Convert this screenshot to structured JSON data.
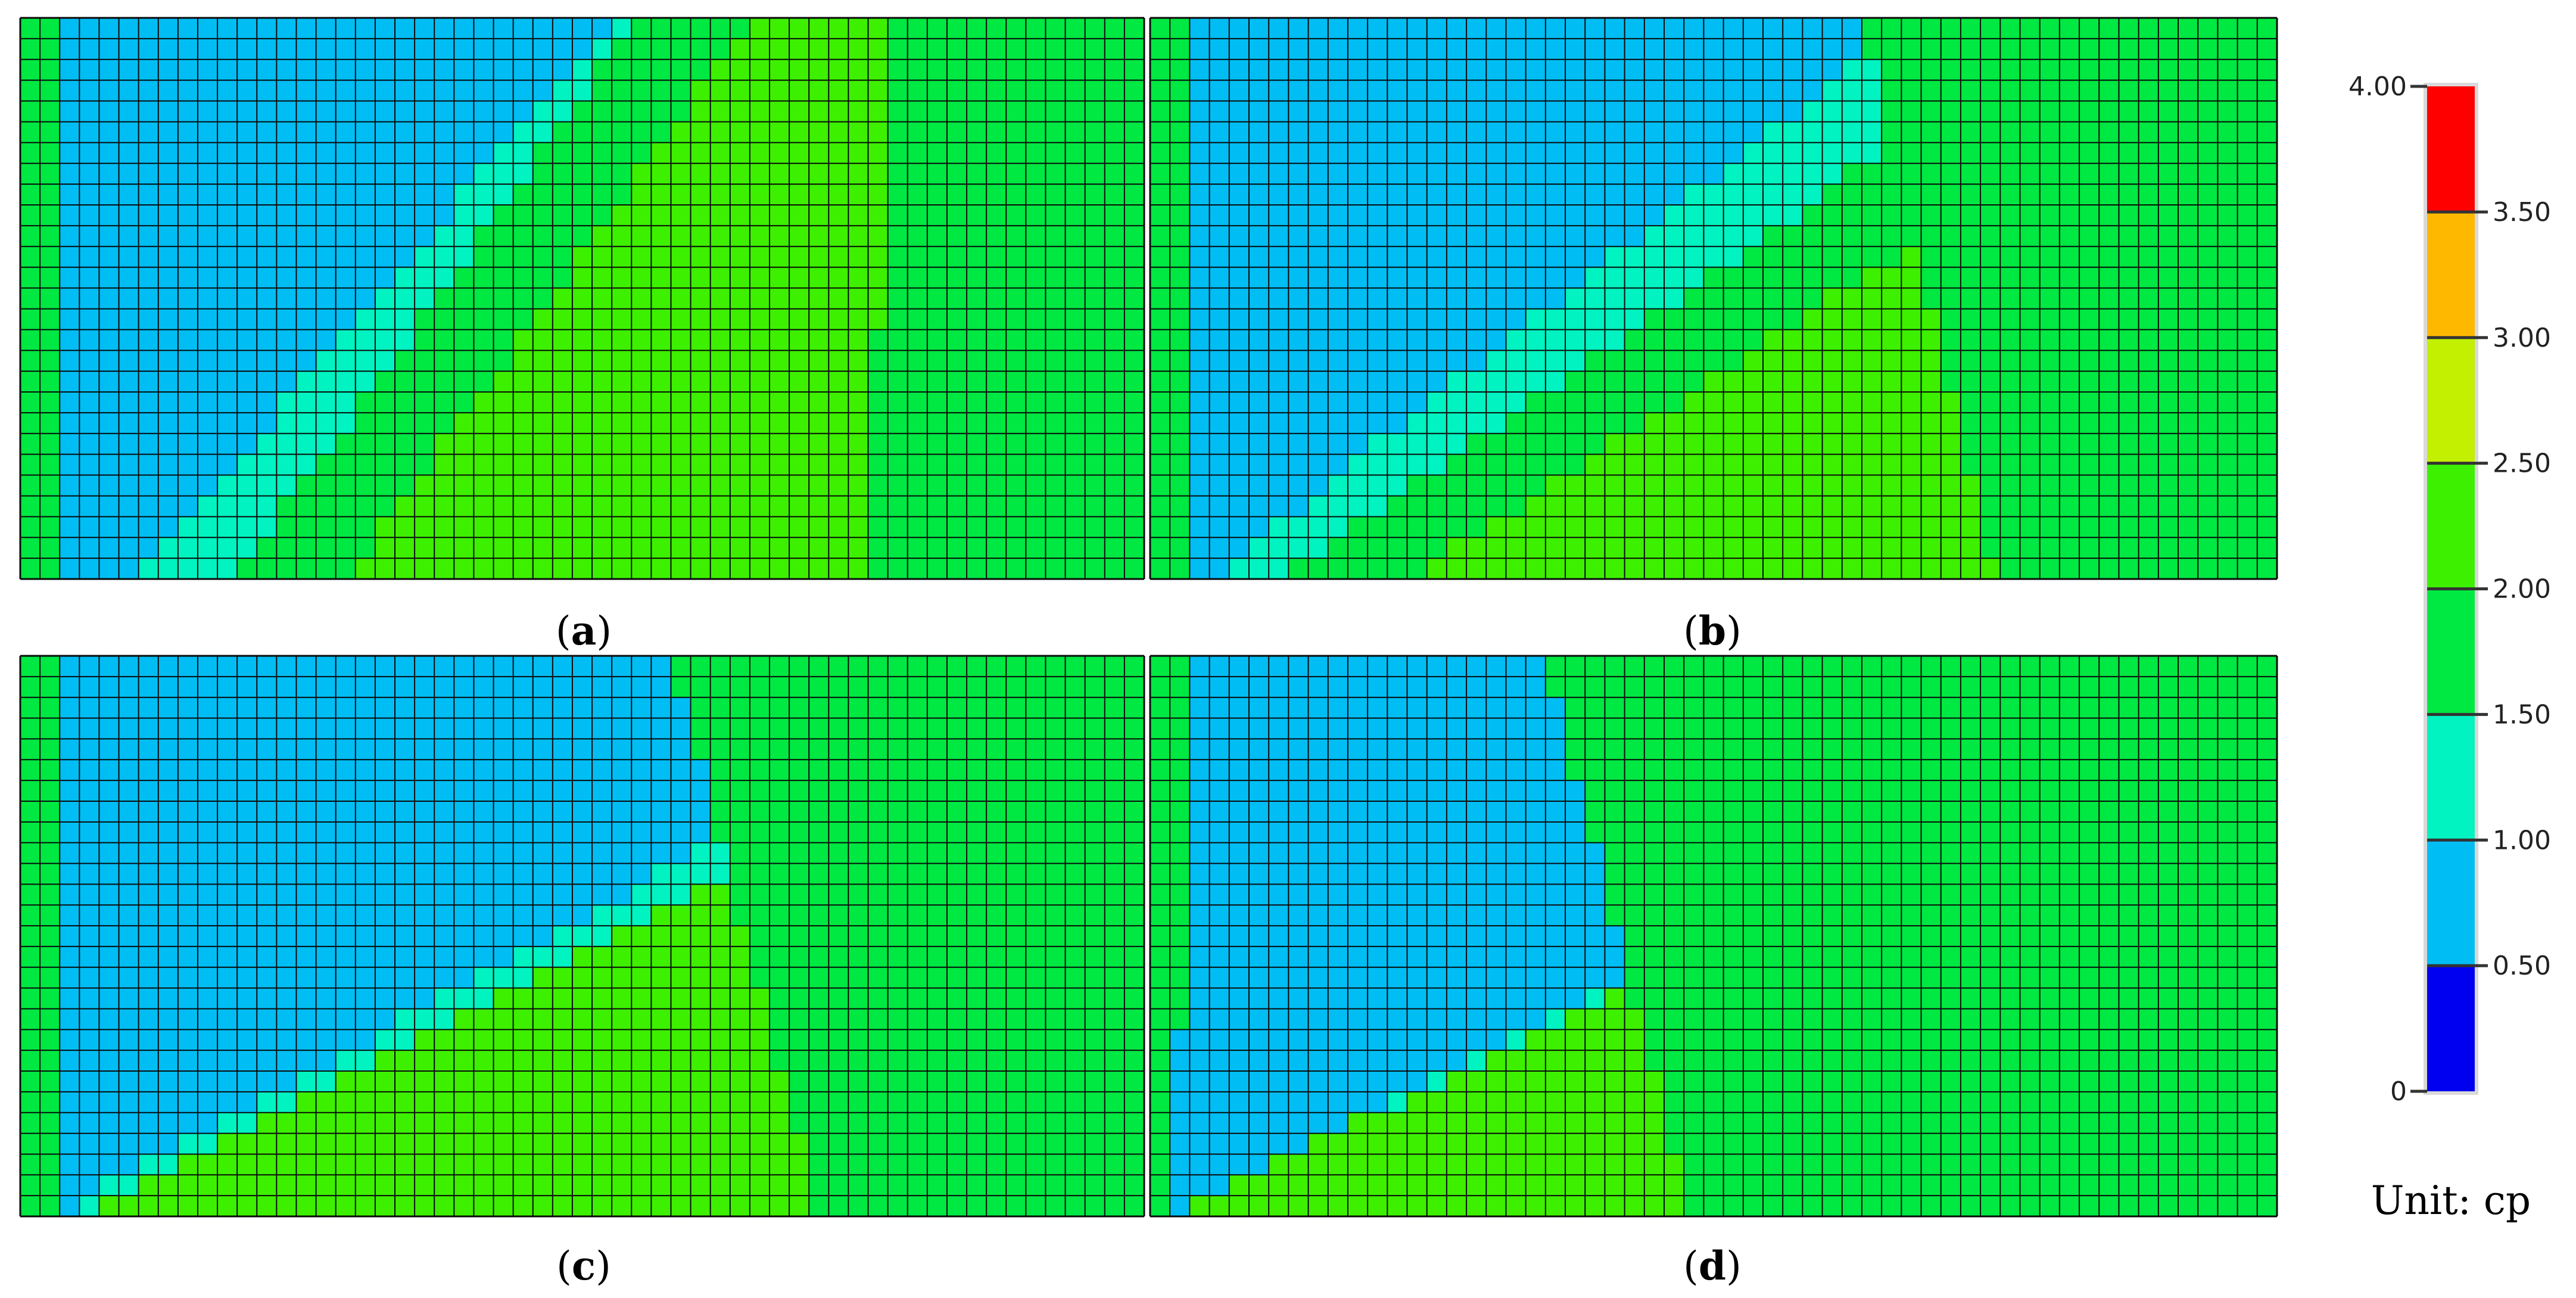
{
  "chart_data": [
    {
      "type": "heatmap",
      "panel": "a",
      "caption_prefix": "(",
      "caption_letter": "a",
      "caption_suffix": ")",
      "grid": {
        "columns": 57,
        "rows": 27
      },
      "band_edges_ascending": [
        {
          "to_band": "1.00–1.50",
          "top": 0.0,
          "bottom": 0.03
        },
        {
          "to_band": "1.00–1.50",
          "top": 0.53,
          "bottom": 0.01
        },
        {
          "to_band": "1.50–2.00",
          "top": 0.56,
          "bottom": 0.1
        },
        {
          "to_band": "2.00–2.50",
          "top": 0.65,
          "bottom": 0.19
        },
        {
          "to_band": "1.50–2.00",
          "top": 0.78,
          "bottom": 0.75
        },
        {
          "to_band": "1.50–2.00",
          "top": 0.78,
          "bottom": 0.75
        }
      ],
      "bands_left_to_right": [
        "1.50–2.00",
        "0.50–1.00",
        "1.00–1.50",
        "1.50–2.00",
        "2.00–2.50",
        "1.50–2.00"
      ]
    },
    {
      "type": "heatmap",
      "panel": "b",
      "caption_prefix": "(",
      "caption_letter": "b",
      "caption_suffix": ")",
      "grid": {
        "columns": 57,
        "rows": 27
      },
      "bands_left_to_right": [
        "1.50–2.00",
        "0.50–1.00",
        "1.00–1.50",
        "1.50–2.00",
        "2.00–2.50",
        "1.50–2.00"
      ],
      "band_edges_x": [
        {
          "top": 0.04,
          "bottom": 0.04
        },
        {
          "top": 0.68,
          "bottom": 0.05
        },
        {
          "top": 0.82,
          "bottom": 0.11
        },
        {
          "top": 0.98,
          "bottom": 0.23
        },
        {
          "top": 0.63,
          "bottom": 0.75
        }
      ]
    },
    {
      "type": "heatmap",
      "panel": "c",
      "caption_prefix": "(",
      "caption_letter": "c",
      "caption_suffix": ")",
      "grid": {
        "columns": 57,
        "rows": 27
      },
      "bands_left_to_right": [
        "1.50–2.00",
        "0.50–1.00",
        "1.00–1.50",
        "1.50–2.00",
        "2.00–2.50",
        "1.50–2.00"
      ],
      "band_edges_x": [
        {
          "top": 0.04,
          "bottom": 0.04
        },
        {
          "top": 0.91,
          "bottom": 0.03
        },
        {
          "top": 1.0,
          "bottom": 0.06
        },
        {
          "top": 1.0,
          "bottom": 0.05
        },
        {
          "top": 0.58,
          "bottom": 0.71
        }
      ]
    },
    {
      "type": "heatmap",
      "panel": "d",
      "caption_prefix": "(",
      "caption_letter": "d",
      "caption_suffix": ")",
      "grid": {
        "columns": 57,
        "rows": 27
      },
      "bands_left_to_right": [
        "1.50–2.00",
        "0.50–1.00",
        "1.00–1.50",
        "1.50–2.00",
        "2.00–2.50",
        "1.50–2.00"
      ],
      "band_edges_x": [
        {
          "top": 0.04,
          "bottom": 0.02
        },
        {
          "top": 0.97,
          "bottom": 0.02
        },
        {
          "top": 1.0,
          "bottom": 0.02
        },
        {
          "top": 1.0,
          "bottom": 0.02
        },
        {
          "top": 0.35,
          "bottom": 0.48
        }
      ]
    }
  ],
  "colorbar": {
    "min": 0,
    "max": 4.0,
    "bands": [
      {
        "from": 0.0,
        "to": 0.5,
        "color": "#0000f0"
      },
      {
        "from": 0.5,
        "to": 1.0,
        "color": "#00bef4"
      },
      {
        "from": 1.0,
        "to": 1.5,
        "color": "#00f3c0"
      },
      {
        "from": 1.5,
        "to": 2.0,
        "color": "#00e842"
      },
      {
        "from": 2.0,
        "to": 2.5,
        "color": "#3df000"
      },
      {
        "from": 2.5,
        "to": 3.0,
        "color": "#c2f000"
      },
      {
        "from": 3.0,
        "to": 3.5,
        "color": "#ffb800"
      },
      {
        "from": 3.5,
        "to": 4.0,
        "color": "#ff0000"
      }
    ],
    "tick_labels": [
      "4.00",
      "3.50",
      "3.00",
      "2.50",
      "2.00",
      "1.50",
      "1.00",
      "0.50",
      "0"
    ],
    "unit_label": "Unit: cp"
  },
  "colors": {
    "band_0_5_1_0": "#00bef4",
    "band_1_0_1_5": "#00f3c0",
    "band_1_5_2_0": "#00e842",
    "band_2_0_2_5": "#3df000",
    "grid_line": "#0a0a0a"
  }
}
